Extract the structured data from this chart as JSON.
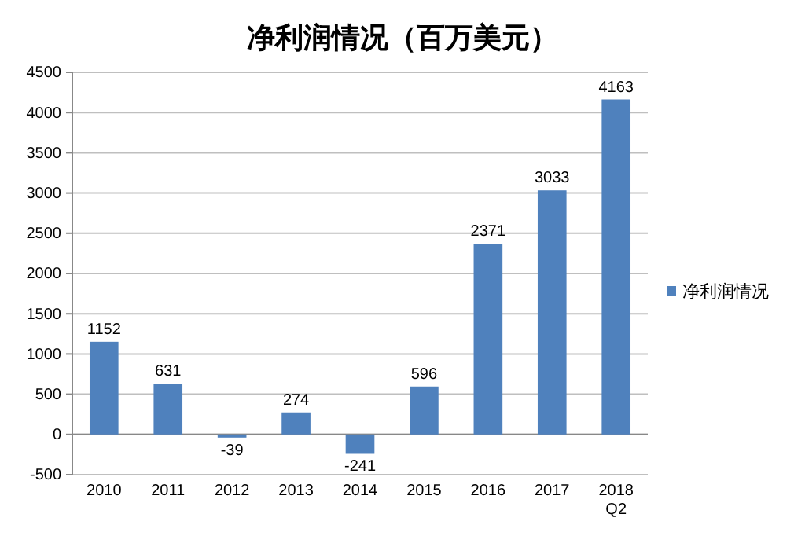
{
  "chart_data": {
    "type": "bar",
    "title": "净利润情况（百万美元）",
    "categories": [
      "2010",
      "2011",
      "2012",
      "2013",
      "2014",
      "2015",
      "2016",
      "2017",
      "2018 Q2"
    ],
    "series": [
      {
        "name": "净利润情况",
        "color": "#4f81bd",
        "values": [
          1152,
          631,
          -39,
          274,
          -241,
          596,
          2371,
          3033,
          4163
        ]
      }
    ],
    "ylim": [
      -500,
      4500
    ],
    "yticks": [
      -500,
      0,
      500,
      1000,
      1500,
      2000,
      2500,
      3000,
      3500,
      4000,
      4500
    ],
    "grid": "y",
    "legend": "right",
    "data_labels": true
  }
}
